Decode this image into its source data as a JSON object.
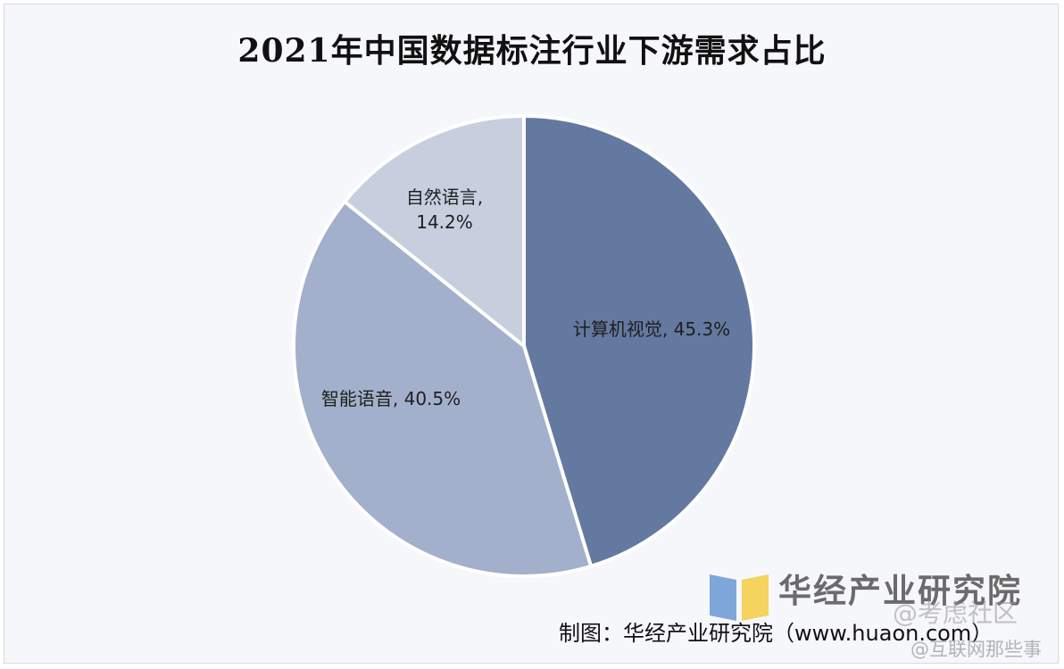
{
  "chart_data": {
    "type": "pie",
    "title": "2021年中国数据标注行业下游需求占比",
    "slices": [
      {
        "category": "计算机视觉",
        "value": 45.3,
        "label": "计算机视觉, 45.3%",
        "color": "#6479a0"
      },
      {
        "category": "智能语音",
        "value": 40.5,
        "label": "智能语音, 40.5%",
        "color": "#a3b0cb"
      },
      {
        "category": "自然语言",
        "value": 14.2,
        "label_line1": "自然语言,",
        "label_line2": "14.2%",
        "color": "#c7cfdf"
      }
    ],
    "start_angle": "12 o'clock",
    "direction": "clockwise"
  },
  "branding": {
    "logo_text": "华经产业研究院",
    "source": "制图：华经产业研究院（www.huaon.com）",
    "watermark_line1": "@考虑社区",
    "watermark_line2": "@互联网那些事"
  },
  "colors": {
    "background": "#f6f7fb",
    "slice_border": "#ffffff",
    "logo_blue": "#7ea6d8",
    "logo_yellow": "#f4d35e"
  }
}
